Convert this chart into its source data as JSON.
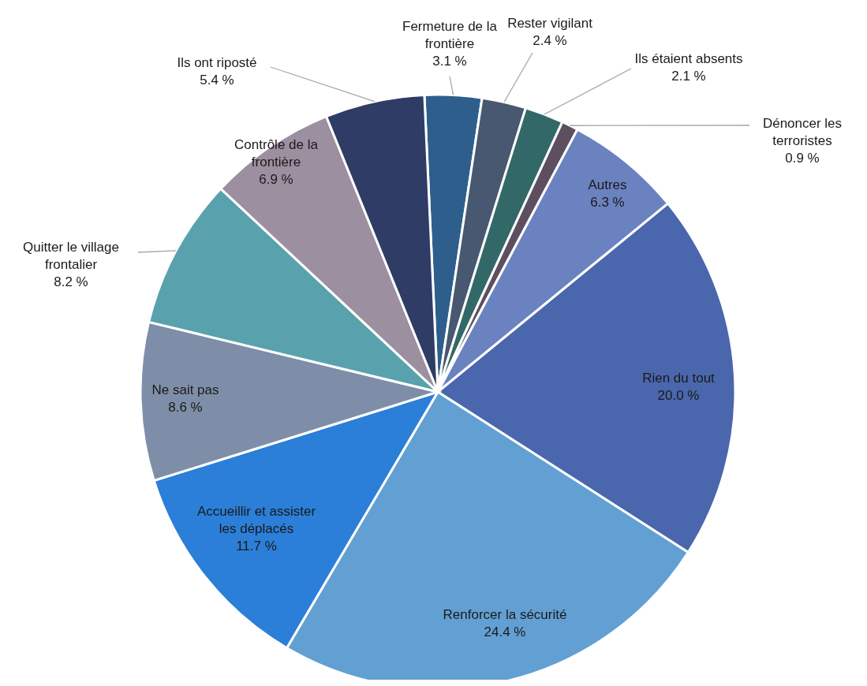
{
  "chart_data": {
    "type": "pie",
    "categories": [
      "Fermeture de la frontière",
      "Rester vigilant",
      "Ils étaient absents",
      "Dénoncer les terroristes",
      "Autres",
      "Rien du tout",
      "Renforcer la sécurité",
      "Accueillir et assister les déplacés",
      "Ne sait pas",
      "Quitter le village frontalier",
      "Contrôle de la frontière",
      "Ils ont riposté"
    ],
    "values": [
      3.1,
      2.4,
      2.1,
      0.9,
      6.3,
      20.0,
      24.4,
      11.7,
      8.6,
      8.2,
      6.9,
      5.4
    ],
    "value_labels": [
      "3.1 %",
      "2.4 %",
      "2.1 %",
      "0.9 %",
      "6.3 %",
      "20.0 %",
      "24.4 %",
      "11.7 %",
      "8.6 %",
      "8.2 %",
      "6.9 %",
      "5.4 %"
    ],
    "colors": [
      "#2e5f8c",
      "#485870",
      "#336868",
      "#5e4f60",
      "#6b82c0",
      "#4a66ad",
      "#62a0d3",
      "#2b7fd8",
      "#7f8ea8",
      "#59a2ad",
      "#9c8f9f",
      "#2f3c66"
    ]
  }
}
